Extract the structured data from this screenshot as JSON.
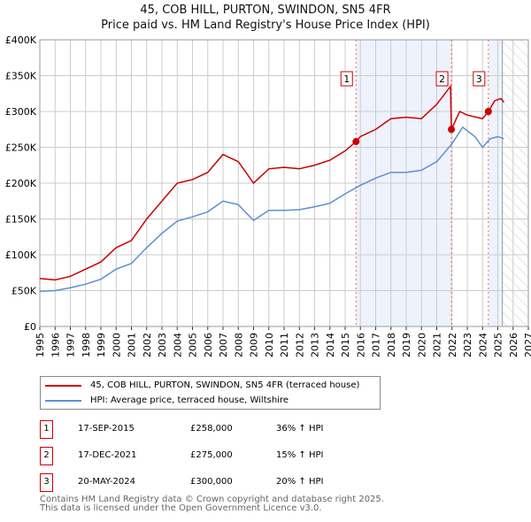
{
  "title": "45, COB HILL, PURTON, SWINDON, SN5 4FR",
  "subtitle": "Price paid vs. HM Land Registry's House Price Index (HPI)",
  "chart_data": {
    "type": "line",
    "xlim": [
      1995,
      2027
    ],
    "ylim": [
      0,
      400000
    ],
    "x_ticks": [
      "1995",
      "1996",
      "1997",
      "1998",
      "1999",
      "2000",
      "2001",
      "2002",
      "2003",
      "2004",
      "2005",
      "2006",
      "2007",
      "2008",
      "2009",
      "2010",
      "2011",
      "2012",
      "2013",
      "2014",
      "2015",
      "2016",
      "2017",
      "2018",
      "2019",
      "2020",
      "2021",
      "2022",
      "2023",
      "2024",
      "2025",
      "2026",
      "2027"
    ],
    "y_ticks": [
      {
        "v": 0,
        "l": "£0"
      },
      {
        "v": 50000,
        "l": "£50K"
      },
      {
        "v": 100000,
        "l": "£100K"
      },
      {
        "v": 150000,
        "l": "£150K"
      },
      {
        "v": 200000,
        "l": "£200K"
      },
      {
        "v": 250000,
        "l": "£250K"
      },
      {
        "v": 300000,
        "l": "£300K"
      },
      {
        "v": 350000,
        "l": "£350K"
      },
      {
        "v": 400000,
        "l": "£400K"
      }
    ],
    "series": [
      {
        "name": "45, COB HILL, PURTON, SWINDON, SN5 4FR (terraced house)",
        "color": "#cc0000",
        "x": [
          1995,
          1996,
          1997,
          1998,
          1999,
          2000,
          2001,
          2002,
          2003,
          2004,
          2005,
          2006,
          2007,
          2007.5,
          2008,
          2009,
          2009.5,
          2010,
          2011,
          2012,
          2013,
          2014,
          2015,
          2015.71,
          2016,
          2017,
          2018,
          2019,
          2020,
          2021,
          2021.9,
          2021.96,
          2022.5,
          2023,
          2024,
          2024.38,
          2024.8,
          2025.2,
          2025.4
        ],
        "y": [
          67000,
          65000,
          70000,
          80000,
          90000,
          110000,
          120000,
          150000,
          175000,
          200000,
          205000,
          215000,
          240000,
          235000,
          230000,
          200000,
          210000,
          220000,
          222000,
          220000,
          225000,
          232000,
          245000,
          258000,
          265000,
          275000,
          290000,
          292000,
          290000,
          310000,
          335000,
          275000,
          300000,
          295000,
          290000,
          300000,
          315000,
          318000,
          313000
        ]
      },
      {
        "name": "HPI: Average price, terraced house, Wiltshire",
        "color": "#5b8fd4",
        "x": [
          1995,
          1996,
          1997,
          1998,
          1999,
          2000,
          2001,
          2002,
          2003,
          2004,
          2005,
          2006,
          2007,
          2008,
          2009,
          2010,
          2011,
          2012,
          2013,
          2014,
          2015,
          2016,
          2017,
          2018,
          2019,
          2020,
          2021,
          2022,
          2022.7,
          2023.5,
          2024,
          2024.5,
          2025,
          2025.4
        ],
        "y": [
          49000,
          50000,
          54000,
          59000,
          66000,
          80000,
          88000,
          110000,
          130000,
          147000,
          153000,
          160000,
          175000,
          170000,
          148000,
          162000,
          162000,
          163000,
          167000,
          172000,
          185000,
          197000,
          207000,
          215000,
          215000,
          218000,
          230000,
          255000,
          278000,
          265000,
          250000,
          262000,
          265000,
          262000
        ]
      }
    ],
    "sales": [
      {
        "label": "1",
        "x": 2015.71,
        "y": 258000,
        "date": "17-SEP-2015",
        "price": "£258,000",
        "hpi": "36% ↑ HPI"
      },
      {
        "label": "2",
        "x": 2021.96,
        "y": 275000,
        "date": "17-DEC-2021",
        "price": "£275,000",
        "hpi": "15% ↑ HPI"
      },
      {
        "label": "3",
        "x": 2024.38,
        "y": 300000,
        "date": "20-MAY-2024",
        "price": "£300,000",
        "hpi": "20% ↑ HPI"
      }
    ],
    "forecast_start": 2025.3
  },
  "legend": {
    "red": "45, COB HILL, PURTON, SWINDON, SN5 4FR (terraced house)",
    "blue": "HPI: Average price, terraced house, Wiltshire"
  },
  "footer": [
    "Contains HM Land Registry data © Crown copyright and database right 2025.",
    "This data is licensed under the Open Government Licence v3.0."
  ]
}
